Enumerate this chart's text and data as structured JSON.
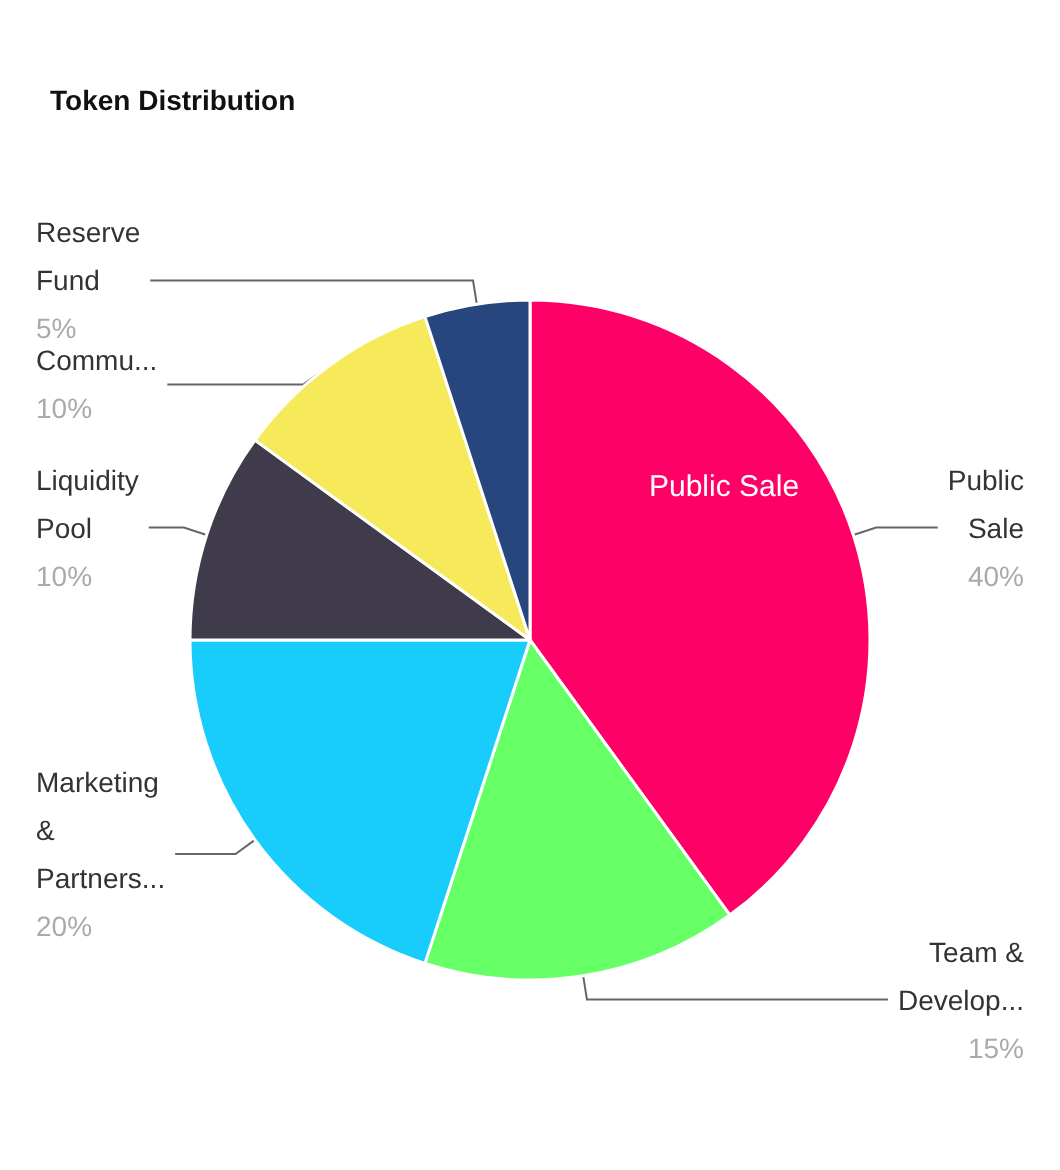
{
  "chart_data": {
    "type": "pie",
    "title": "Token Distribution",
    "categories": [
      "Public Sale",
      "Team & Develop...",
      "Marketing & Partners...",
      "Liquidity Pool",
      "Commu...",
      "Reserve Fund"
    ],
    "values": [
      40,
      15,
      20,
      10,
      10,
      5
    ],
    "value_labels": [
      "40%",
      "15%",
      "20%",
      "10%",
      "10%",
      "5%"
    ],
    "colors": [
      "#ff0066",
      "#66ff66",
      "#18cdfb",
      "#3f3b4b",
      "#f6e95a",
      "#26467d"
    ],
    "annotations": [
      "Public Sale"
    ],
    "legend": false
  }
}
